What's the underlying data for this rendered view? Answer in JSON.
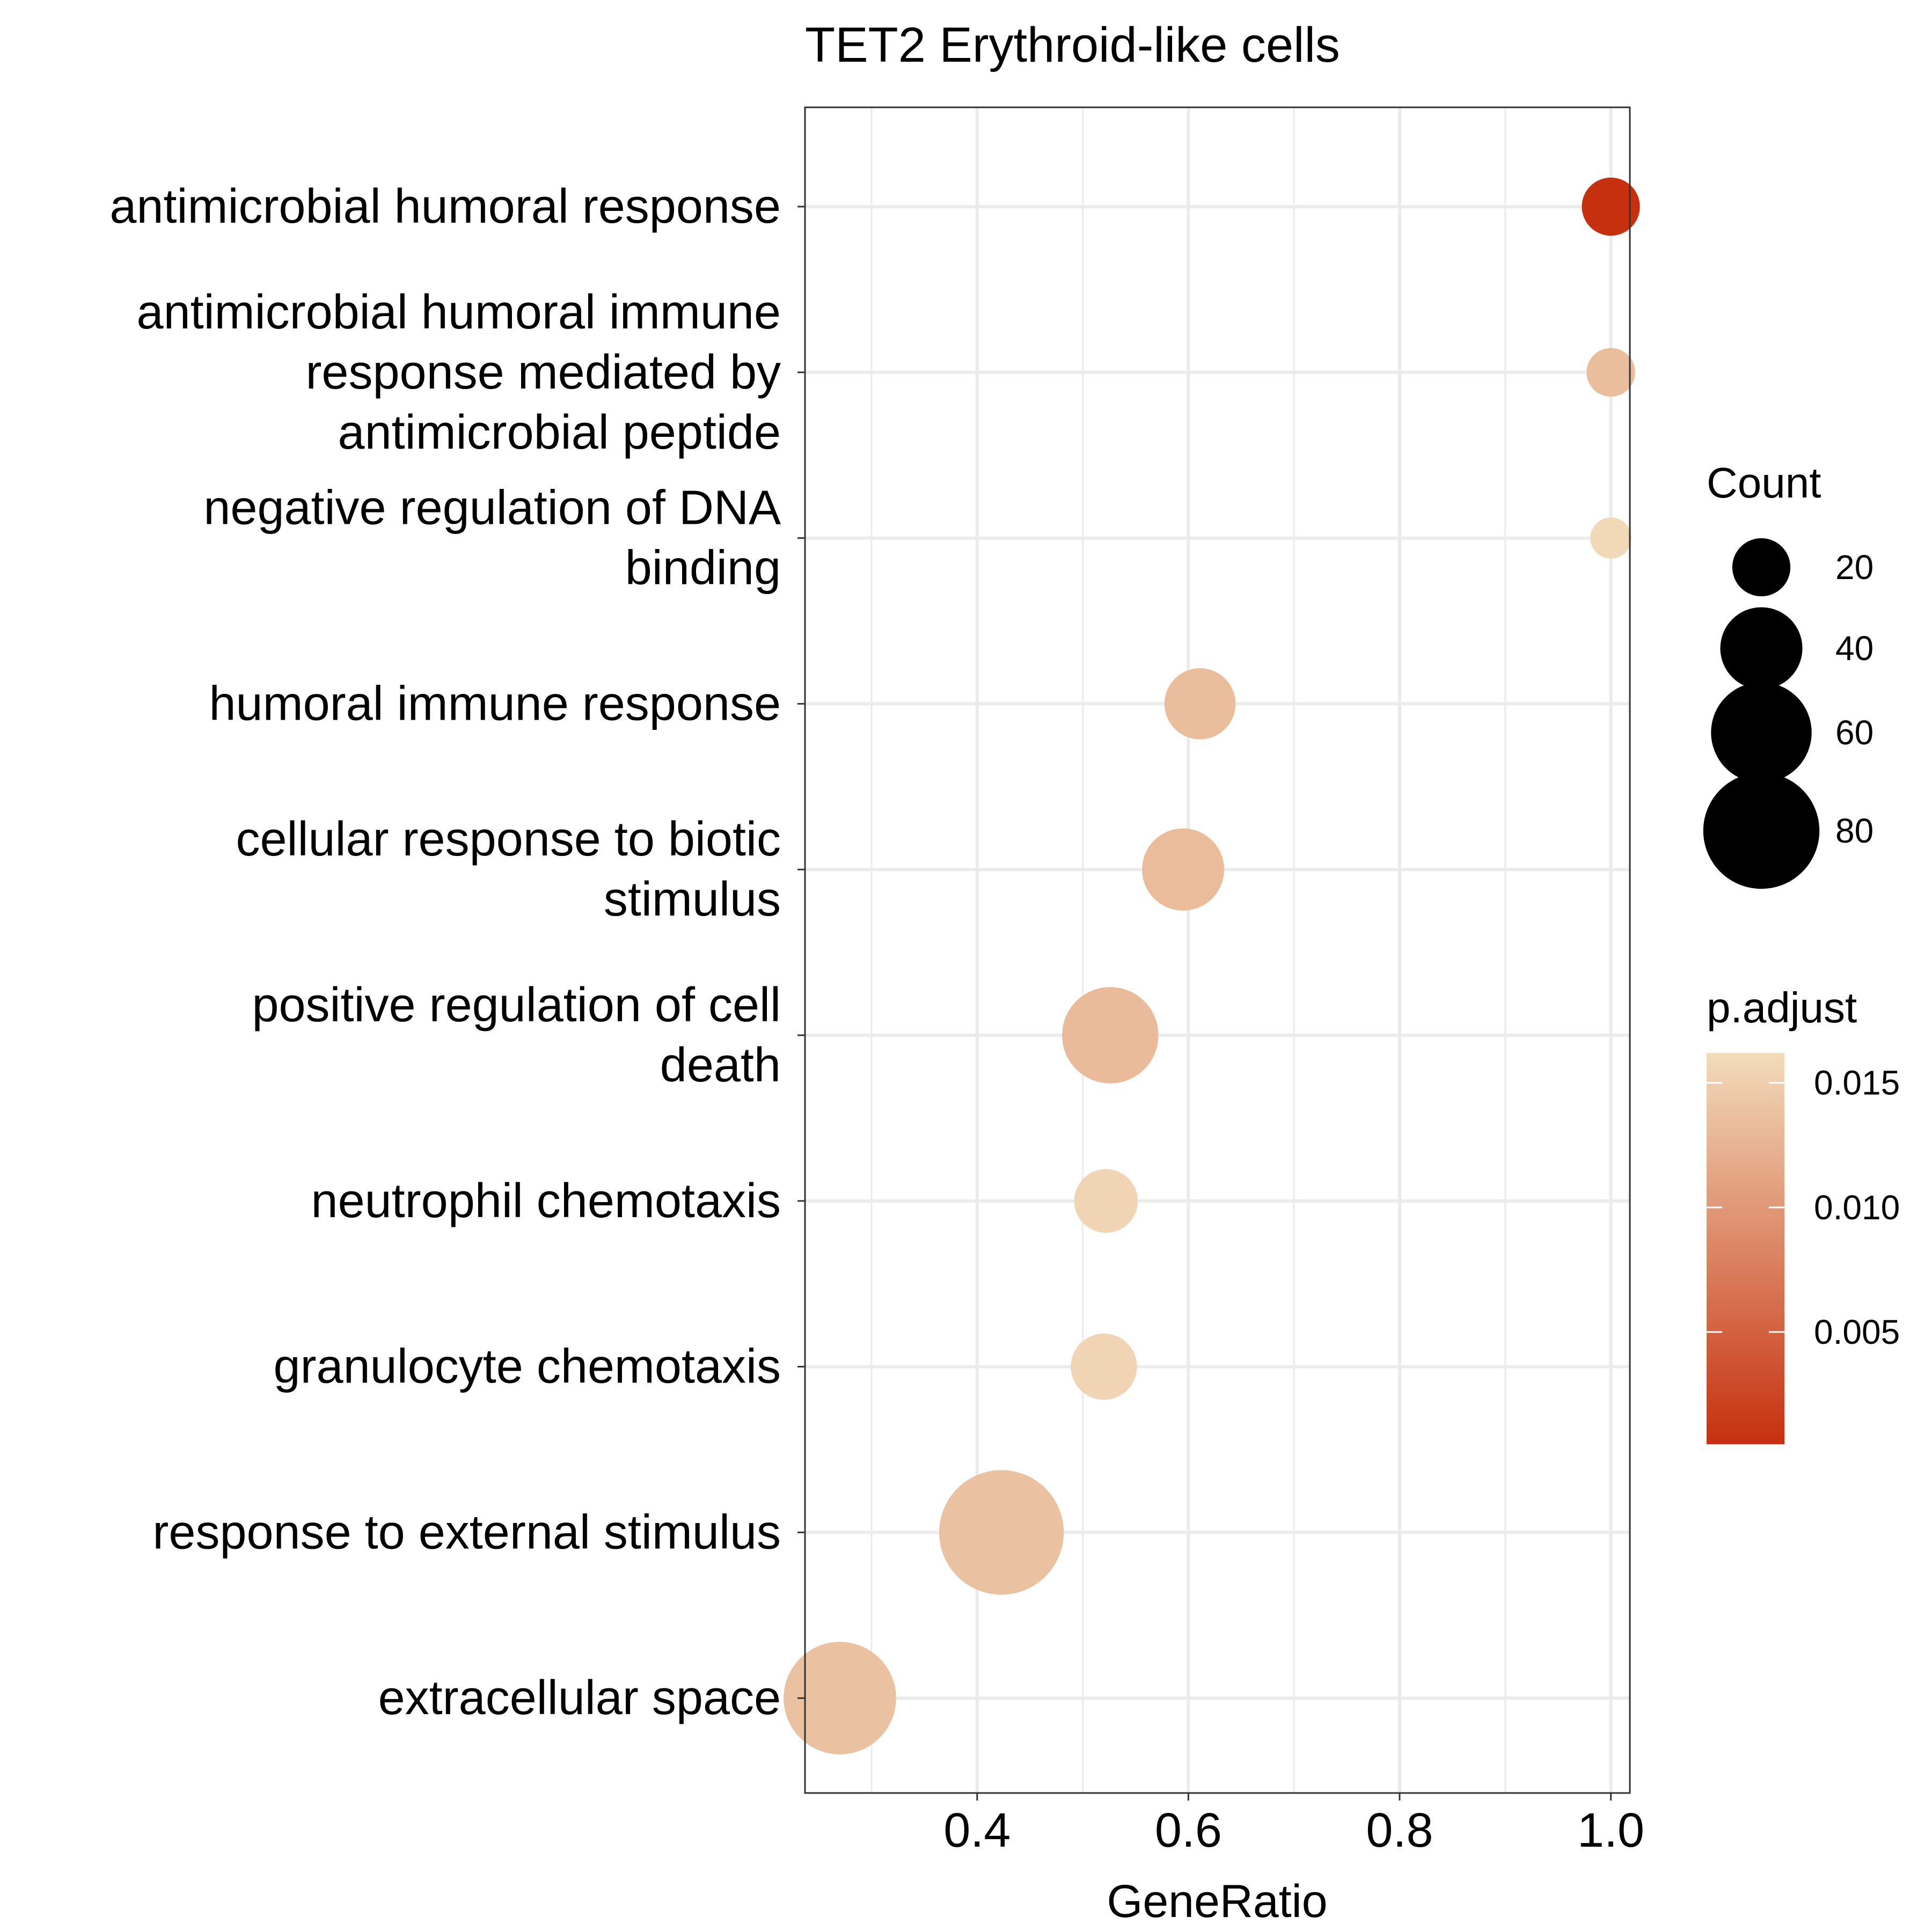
{
  "chart_data": {
    "type": "scatter",
    "title": "TET2 Erythroid-like cells",
    "xlabel": "GeneRatio",
    "ylabel": "",
    "xlim": [
      0.237,
      1.018
    ],
    "x_ticks": [
      0.4,
      0.6,
      0.8,
      1.0
    ],
    "x_tick_labels": [
      "0.4",
      "0.6",
      "0.8",
      "1.0"
    ],
    "grid": true,
    "categories": [
      [
        "antimicrobial humoral response"
      ],
      [
        "antimicrobial humoral immune",
        "response mediated by",
        "antimicrobial peptide"
      ],
      [
        "negative regulation of DNA",
        "binding"
      ],
      [
        "humoral immune response"
      ],
      [
        "cellular response to biotic",
        "stimulus"
      ],
      [
        "positive regulation of cell",
        "death"
      ],
      [
        "neutrophil chemotaxis"
      ],
      [
        "granulocyte chemotaxis"
      ],
      [
        "response to external stimulus"
      ],
      [
        "extracellular space"
      ]
    ],
    "points": [
      {
        "x": 1.0,
        "count": 20,
        "p_adjust": 0.0005
      },
      {
        "x": 1.0,
        "count": 14,
        "p_adjust": 0.0135
      },
      {
        "x": 1.0,
        "count": 10,
        "p_adjust": 0.0158
      },
      {
        "x": 0.611,
        "count": 30,
        "p_adjust": 0.0135
      },
      {
        "x": 0.595,
        "count": 40,
        "p_adjust": 0.0133
      },
      {
        "x": 0.526,
        "count": 55,
        "p_adjust": 0.0132
      },
      {
        "x": 0.522,
        "count": 24,
        "p_adjust": 0.0155
      },
      {
        "x": 0.52,
        "count": 26,
        "p_adjust": 0.0155
      },
      {
        "x": 0.423,
        "count": 92,
        "p_adjust": 0.0138
      },
      {
        "x": 0.27,
        "count": 75,
        "p_adjust": 0.0138
      }
    ],
    "size_legend": {
      "title": "Count",
      "values": [
        20,
        40,
        60,
        80
      ],
      "labels": [
        "20",
        "40",
        "60",
        "80"
      ]
    },
    "color_legend": {
      "title": "p.adjust",
      "range": [
        0.0005,
        0.0162
      ],
      "ticks": [
        0.005,
        0.01,
        0.015
      ],
      "tick_labels": [
        "0.005",
        "0.010",
        "0.015"
      ],
      "low_color": "#c6300f",
      "high_color": "#f2dcbb"
    },
    "colors": {
      "grid": "#ebebeb",
      "panel_border": "#333333",
      "tick": "#333333"
    }
  }
}
